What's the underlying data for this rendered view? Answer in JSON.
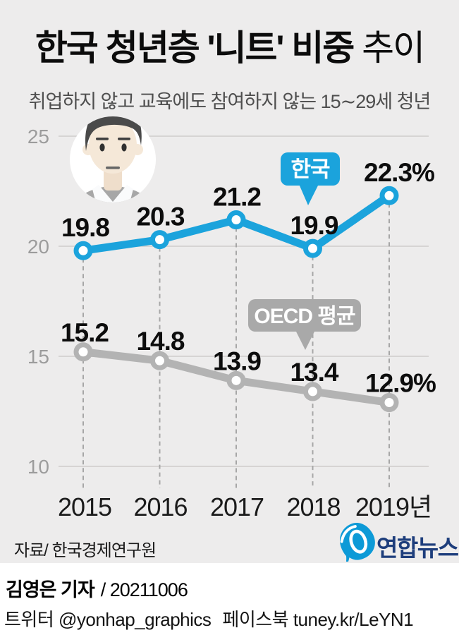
{
  "header": {
    "title_strong": "한국 청년층 '니트' 비중",
    "title_light": " 추이",
    "subtitle": "취업하지 않고 교육에도 참여하지 않는 15∼29세 청년"
  },
  "chart_data": {
    "type": "line",
    "title": "한국 청년층 '니트' 비중 추이",
    "subtitle": "취업하지 않고 교육에도 참여하지 않는 15∼29세 청년 (단위: %)",
    "categories": [
      "2015",
      "2016",
      "2017",
      "2018",
      "2019년"
    ],
    "x": [
      2015,
      2016,
      2017,
      2018,
      2019
    ],
    "yticks": [
      25,
      20,
      15,
      10
    ],
    "ylim": [
      9,
      26
    ],
    "grid": true,
    "legend_position": "callout-bubbles",
    "series": [
      {
        "name": "한국",
        "color": "#1ba3dc",
        "values": [
          19.8,
          20.3,
          21.2,
          19.9,
          22.3
        ],
        "point_labels": [
          "19.8",
          "20.3",
          "21.2",
          "19.9",
          "22.3%"
        ]
      },
      {
        "name": "OECD 평균",
        "color": "#b3b3b3",
        "values": [
          15.2,
          14.8,
          13.9,
          13.4,
          12.9
        ],
        "point_labels": [
          "15.2",
          "14.8",
          "13.9",
          "13.4",
          "12.9%"
        ]
      }
    ],
    "annotations": [
      {
        "label": "한국",
        "attached_series": "한국",
        "bubble_color": "#1ba3dc",
        "text_color": "#ffffff"
      },
      {
        "label": "OECD 평균",
        "attached_series": "OECD 평균",
        "bubble_color": "#a9a9a9",
        "text_color": "#ffffff"
      }
    ]
  },
  "source": {
    "label": "자료/ 한국경제연구원"
  },
  "branding": {
    "logo_text": "연합뉴스",
    "logo_icon": "yonhap-swirl",
    "logo_text_color": "#1e3e7c",
    "logo_icon_color": "#0d9ad7"
  },
  "footer": {
    "byline_bold": "김영은 기자",
    "byline_rest": "/ 20211006",
    "social_twitter": "트위터 @yonhap_graphics",
    "social_facebook": "페이스북 tuney.kr/LeYN1"
  },
  "colors": {
    "background": "#edecec",
    "footer_background": "#ffffff",
    "korea_line": "#1ba3dc",
    "oecd_line": "#b3b3b3",
    "gridline": "#d6d4d3",
    "dashed_guide": "#a6a6a6",
    "axis_tick_text": "#9c9c9c",
    "value_label_text": "#0d0d0d"
  }
}
